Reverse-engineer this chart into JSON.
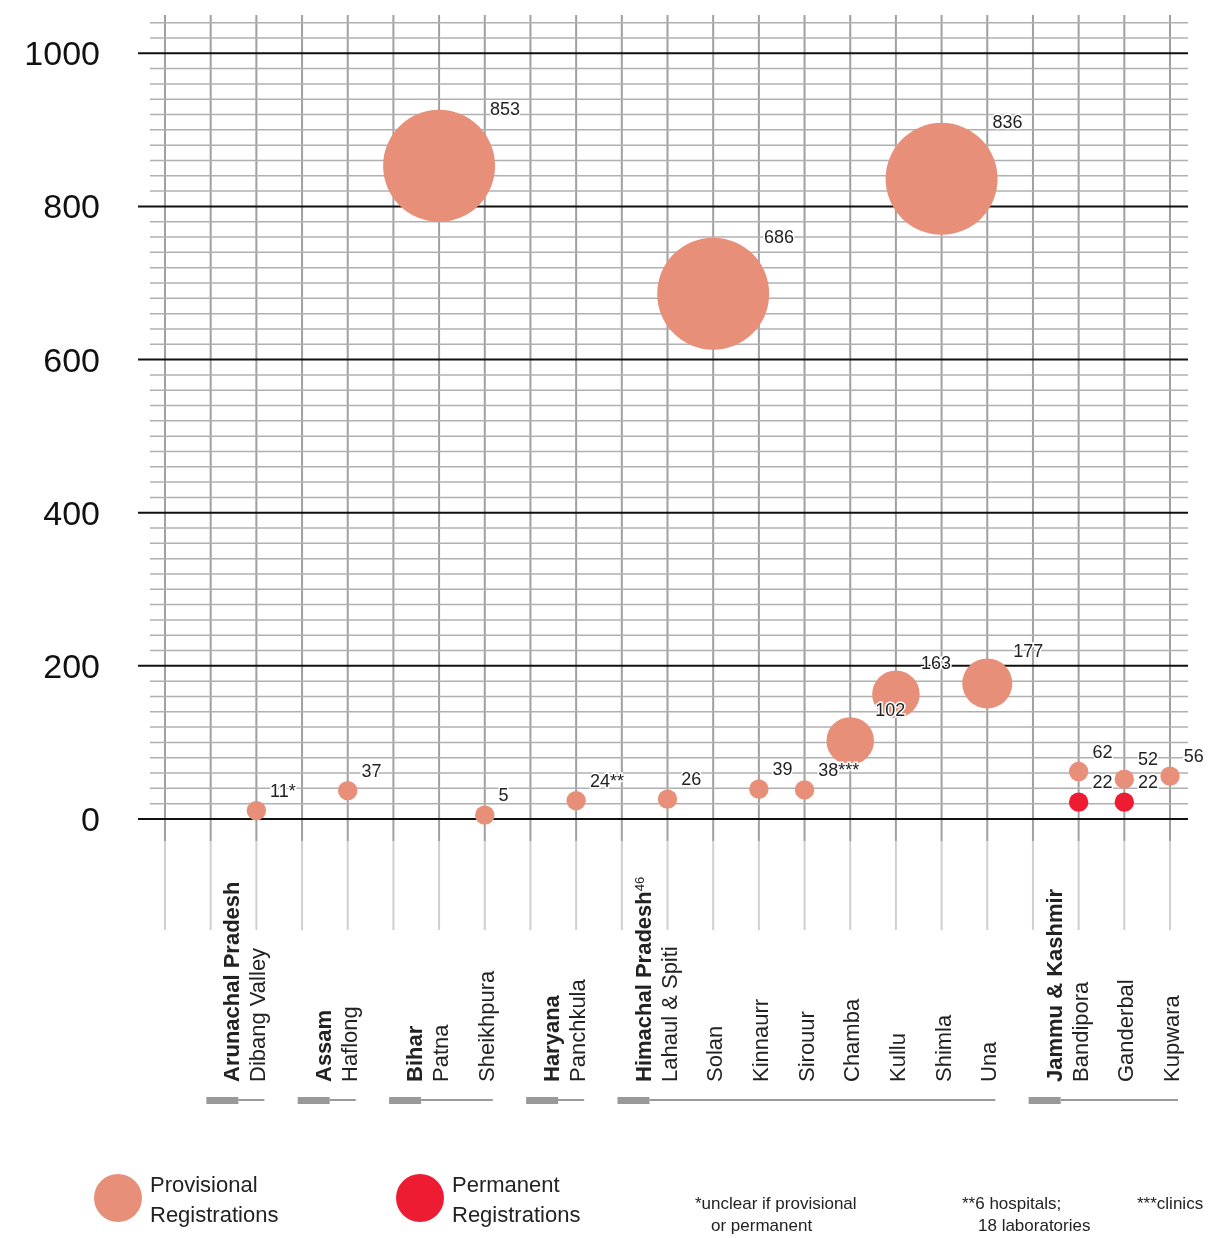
{
  "chart_data": {
    "type": "bubble",
    "categories": [
      null,
      null,
      "Arunachal Pradesh\nDibang Valley",
      null,
      "Assam\nHaflong",
      null,
      "Bihar\nPatna",
      "Sheikhpura",
      null,
      "Haryana\nPanchkula",
      null,
      "Himachal Pradesh$^{46}$\nLahaul & Spiti",
      "Solan",
      "Kinnaurr",
      "Sirouur",
      "Chamba",
      "Kullu",
      "Shimla",
      "Una",
      null,
      "Jammu & Kashmir\nBandipora",
      "Ganderbal",
      "Kupwara"
    ],
    "series": [
      {
        "name": "Provisional Registrations",
        "color": "#e78f79",
        "values": [
          null,
          null,
          11,
          null,
          37,
          null,
          853,
          5,
          null,
          24,
          null,
          26,
          686,
          39,
          38,
          102,
          163,
          836,
          177,
          null,
          62,
          52,
          56
        ],
        "sizes": [
          null,
          null,
          0.03,
          null,
          0.03,
          null,
          1,
          0.03,
          null,
          0.03,
          null,
          0.03,
          1,
          0.03,
          0.03,
          0.18,
          0.18,
          1,
          0.2,
          null,
          0.03,
          0.03,
          0.03
        ],
        "value_labels": [
          null,
          null,
          "11*",
          null,
          "37",
          null,
          "853",
          "5",
          null,
          "24**",
          null,
          "26",
          "686",
          "39",
          "38***",
          "102",
          "163",
          "836",
          "177",
          null,
          "62",
          "52",
          "56"
        ]
      },
      {
        "name": "Permanent Registrations",
        "color": "#ee1c33",
        "values": [
          null,
          null,
          null,
          null,
          null,
          null,
          null,
          null,
          null,
          null,
          null,
          null,
          null,
          null,
          null,
          null,
          null,
          null,
          null,
          null,
          22,
          22,
          null
        ],
        "sizes": [
          null,
          null,
          null,
          null,
          null,
          null,
          null,
          null,
          null,
          null,
          null,
          null,
          null,
          null,
          null,
          null,
          null,
          null,
          null,
          null,
          0.03,
          0.03,
          null
        ],
        "value_labels": [
          null,
          null,
          null,
          null,
          null,
          null,
          null,
          null,
          null,
          null,
          null,
          null,
          null,
          null,
          null,
          null,
          null,
          null,
          null,
          null,
          "22",
          "22",
          null
        ]
      }
    ],
    "ylim": [
      0,
      1050
    ],
    "yticks": [
      0,
      {
        "value": 20,
        "label": null
      },
      {
        "value": 40,
        "label": null
      },
      {
        "value": 60,
        "label": null
      },
      {
        "value": 80,
        "label": null
      },
      {
        "value": 100,
        "label": null
      },
      {
        "value": 120,
        "label": null
      },
      {
        "value": 140,
        "label": null
      },
      {
        "value": 160,
        "label": null
      },
      {
        "value": 180,
        "label": null
      },
      200,
      {
        "value": 220,
        "label": null
      },
      {
        "value": 240,
        "label": null
      },
      {
        "value": 260,
        "label": null
      },
      {
        "value": 280,
        "label": null
      },
      {
        "value": 300,
        "label": null
      },
      {
        "value": 320,
        "label": null
      },
      {
        "value": 340,
        "label": null
      },
      {
        "value": 360,
        "label": null
      },
      {
        "value": 380,
        "label": null
      },
      400,
      {
        "value": 420,
        "label": null
      },
      {
        "value": 440,
        "label": null
      },
      {
        "value": 460,
        "label": null
      },
      {
        "value": 480,
        "label": null
      },
      {
        "value": 500,
        "label": null
      },
      {
        "value": 520,
        "label": null
      },
      {
        "value": 540,
        "label": null
      },
      {
        "value": 560,
        "label": null
      },
      {
        "value": 580,
        "label": null
      },
      600,
      {
        "value": 620,
        "label": null
      },
      {
        "value": 640,
        "label": null
      },
      {
        "value": 660,
        "label": null
      },
      {
        "value": 680,
        "label": null
      },
      {
        "value": 700,
        "label": null
      },
      {
        "value": 720,
        "label": null
      },
      {
        "value": 740,
        "label": null
      },
      {
        "value": 760,
        "label": null
      },
      {
        "value": 780,
        "label": null
      },
      800,
      {
        "value": 820,
        "label": null
      },
      {
        "value": 840,
        "label": null
      },
      {
        "value": 860,
        "label": null
      },
      {
        "value": 880,
        "label": null
      },
      {
        "value": 900,
        "label": null
      },
      {
        "value": 920,
        "label": null
      },
      {
        "value": 940,
        "label": null
      },
      {
        "value": 960,
        "label": null
      },
      {
        "value": 980,
        "label": null
      },
      1000,
      {
        "value": 1020,
        "label": null
      },
      {
        "value": 1040,
        "label": null
      }
    ],
    "grid": true,
    "legend": "bottom left",
    "annotations": [
      "*unclear if provisional\nor permanent",
      "**6 hospitals;\n18 laboratories",
      "***clinics"
    ]
  }
}
